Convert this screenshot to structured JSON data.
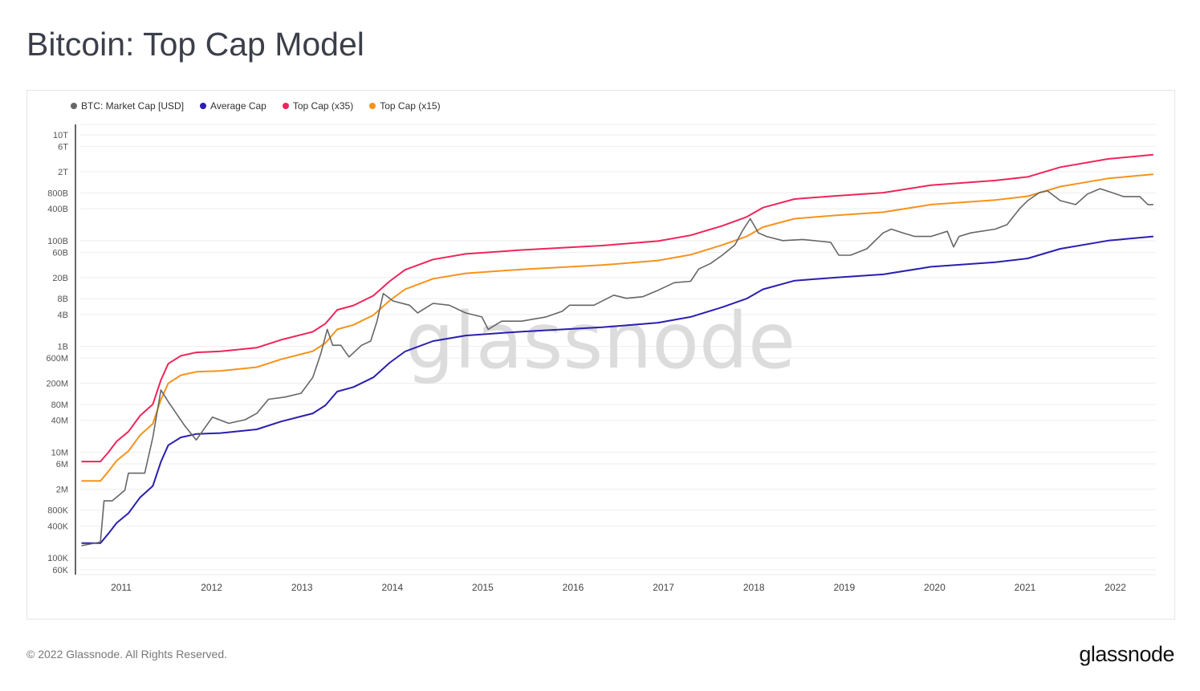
{
  "title": "Bitcoin: Top Cap Model",
  "footer": {
    "copyright": "© 2022 Glassnode. All Rights Reserved.",
    "logo": "glassnode"
  },
  "watermark": "glassnode",
  "chart_data": {
    "type": "line",
    "title": "Bitcoin: Top Cap Model",
    "yscale": "log",
    "ylim": [
      60000,
      10000000000000
    ],
    "xlim": [
      2010.55,
      2022.45
    ],
    "legend_position": "top-left",
    "grid": true,
    "y_ticks": [
      {
        "label": "10T",
        "value": 10000000000000.0
      },
      {
        "label": "6T",
        "value": 6000000000000.0
      },
      {
        "label": "2T",
        "value": 2000000000000.0
      },
      {
        "label": "800B",
        "value": 800000000000.0
      },
      {
        "label": "400B",
        "value": 400000000000.0
      },
      {
        "label": "100B",
        "value": 100000000000.0
      },
      {
        "label": "60B",
        "value": 60000000000.0
      },
      {
        "label": "20B",
        "value": 20000000000.0
      },
      {
        "label": "8B",
        "value": 8000000000.0
      },
      {
        "label": "4B",
        "value": 4000000000.0
      },
      {
        "label": "1B",
        "value": 1000000000.0
      },
      {
        "label": "600M",
        "value": 600000000.0
      },
      {
        "label": "200M",
        "value": 200000000.0
      },
      {
        "label": "80M",
        "value": 80000000.0
      },
      {
        "label": "40M",
        "value": 40000000.0
      },
      {
        "label": "10M",
        "value": 10000000.0
      },
      {
        "label": "6M",
        "value": 6000000.0
      },
      {
        "label": "2M",
        "value": 2000000.0
      },
      {
        "label": "800K",
        "value": 800000.0
      },
      {
        "label": "400K",
        "value": 400000.0
      },
      {
        "label": "100K",
        "value": 100000.0
      },
      {
        "label": "60K",
        "value": 60000.0
      }
    ],
    "x_ticks": [
      {
        "label": "2011",
        "value": 2011
      },
      {
        "label": "2012",
        "value": 2012
      },
      {
        "label": "2013",
        "value": 2013
      },
      {
        "label": "2014",
        "value": 2014
      },
      {
        "label": "2015",
        "value": 2015
      },
      {
        "label": "2016",
        "value": 2016
      },
      {
        "label": "2017",
        "value": 2017
      },
      {
        "label": "2018",
        "value": 2018
      },
      {
        "label": "2019",
        "value": 2019
      },
      {
        "label": "2020",
        "value": 2020
      },
      {
        "label": "2021",
        "value": 2021
      },
      {
        "label": "2022",
        "value": 2022
      }
    ],
    "series": [
      {
        "name": "BTC: Market Cap [USD]",
        "color": "#666666",
        "x": [
          2010.56,
          2010.77,
          2010.81,
          2010.9,
          2011.04,
          2011.08,
          2011.26,
          2011.35,
          2011.44,
          2011.52,
          2011.7,
          2011.83,
          2012.01,
          2012.19,
          2012.37,
          2012.5,
          2012.63,
          2012.81,
          2012.99,
          2013.12,
          2013.21,
          2013.28,
          2013.34,
          2013.43,
          2013.52,
          2013.66,
          2013.76,
          2013.83,
          2013.9,
          2014.01,
          2014.19,
          2014.28,
          2014.45,
          2014.63,
          2014.81,
          2014.99,
          2015.06,
          2015.21,
          2015.43,
          2015.7,
          2015.88,
          2015.96,
          2016.23,
          2016.45,
          2016.59,
          2016.77,
          2016.94,
          2017.12,
          2017.3,
          2017.39,
          2017.52,
          2017.65,
          2017.79,
          2017.87,
          2017.96,
          2018.05,
          2018.14,
          2018.32,
          2018.54,
          2018.85,
          2018.94,
          2019.07,
          2019.25,
          2019.43,
          2019.52,
          2019.65,
          2019.78,
          2019.96,
          2020.14,
          2020.21,
          2020.27,
          2020.4,
          2020.67,
          2020.8,
          2020.94,
          2021.03,
          2021.16,
          2021.25,
          2021.39,
          2021.56,
          2021.69,
          2021.83,
          2021.96,
          2022.09,
          2022.27,
          2022.36,
          2022.42
        ],
        "values": [
          170000.0,
          200000.0,
          1200000.0,
          1200000.0,
          1900000.0,
          4000000.0,
          4000000.0,
          19000000.0,
          150000000.0,
          90000000.0,
          32000000.0,
          17000000.0,
          46000000.0,
          35000000.0,
          41000000.0,
          54000000.0,
          100000000.0,
          110000000.0,
          130000000.0,
          260000000.0,
          740000000.0,
          2100000000.0,
          1050000000.0,
          1050000000.0,
          630000000.0,
          1050000000.0,
          1260000000.0,
          3000000000.0,
          10000000000.0,
          7200000000.0,
          6000000000.0,
          4300000000.0,
          6500000000.0,
          6000000000.0,
          4300000000.0,
          3600000000.0,
          2100000000.0,
          3000000000.0,
          3000000000.0,
          3600000000.0,
          4600000000.0,
          6000000000.0,
          6000000000.0,
          9300000000.0,
          8100000000.0,
          8700000000.0,
          11500000000.0,
          16000000000.0,
          17000000000.0,
          29000000000.0,
          37000000000.0,
          53000000000.0,
          83000000000.0,
          150000000000.0,
          260000000000.0,
          140000000000.0,
          120000000000.0,
          100000000000.0,
          105000000000.0,
          93000000000.0,
          53000000000.0,
          53000000000.0,
          70000000000.0,
          140000000000.0,
          165000000000.0,
          140000000000.0,
          120000000000.0,
          120000000000.0,
          150000000000.0,
          76000000000.0,
          120000000000.0,
          140000000000.0,
          165000000000.0,
          200000000000.0,
          400000000000.0,
          570000000000.0,
          810000000000.0,
          870000000000.0,
          570000000000.0,
          480000000000.0,
          760000000000.0,
          960000000000.0,
          810000000000.0,
          680000000000.0,
          680000000000.0,
          480000000000.0,
          480000000000.0
        ]
      },
      {
        "name": "Average Cap",
        "color": "#2a1fb0",
        "x": [
          2010.56,
          2010.77,
          2010.86,
          2010.95,
          2011.08,
          2011.21,
          2011.35,
          2011.44,
          2011.52,
          2011.66,
          2011.83,
          2012.1,
          2012.5,
          2012.77,
          2013.12,
          2013.26,
          2013.39,
          2013.57,
          2013.79,
          2013.97,
          2014.14,
          2014.45,
          2014.81,
          2015.43,
          2016.32,
          2016.94,
          2017.3,
          2017.65,
          2017.92,
          2018.1,
          2018.45,
          2018.9,
          2019.43,
          2019.96,
          2020.67,
          2021.03,
          2021.39,
          2021.92,
          2022.42
        ],
        "values": [
          190000.0,
          190000.0,
          290000.0,
          460000.0,
          700000.0,
          1400000.0,
          2300000.0,
          6600000.0,
          13500000.0,
          19000000.0,
          22000000.0,
          23000000.0,
          27000000.0,
          38000000.0,
          54000000.0,
          77000000.0,
          140000000.0,
          170000000.0,
          260000000.0,
          490000000.0,
          800000000.0,
          1260000000.0,
          1600000000.0,
          1900000000.0,
          2300000000.0,
          2800000000.0,
          3600000000.0,
          5500000000.0,
          8000000000.0,
          12000000000.0,
          17500000000.0,
          20000000000.0,
          23000000000.0,
          32000000000.0,
          39000000000.0,
          46000000000.0,
          70000000000.0,
          100000000000.0,
          120000000000.0
        ]
      },
      {
        "name": "Top Cap (x35)",
        "color": "#f0245a",
        "x": [
          2010.56,
          2010.77,
          2010.86,
          2010.95,
          2011.08,
          2011.21,
          2011.35,
          2011.44,
          2011.52,
          2011.66,
          2011.83,
          2012.1,
          2012.5,
          2012.77,
          2013.12,
          2013.26,
          2013.39,
          2013.57,
          2013.79,
          2013.97,
          2014.14,
          2014.45,
          2014.81,
          2015.43,
          2016.32,
          2016.94,
          2017.3,
          2017.65,
          2017.92,
          2018.1,
          2018.45,
          2018.9,
          2019.43,
          2019.96,
          2020.67,
          2021.03,
          2021.39,
          2021.92,
          2022.42
        ],
        "values": [
          6650000.0,
          6650000.0,
          10000000.0,
          16000000.0,
          24500000.0,
          49000000.0,
          80500000.0,
          231000000.0,
          470000000.0,
          665000000.0,
          770000000.0,
          805000000.0,
          945000000.0,
          1330000000.0,
          1890000000.0,
          2700000000.0,
          4900000000.0,
          5950000000.0,
          9100000000.0,
          17000000000.0,
          28000000000.0,
          44000000000.0,
          56000000000.0,
          66500000000.0,
          80500000000.0,
          98000000000.0,
          126000000000.0,
          190000000000.0,
          280000000000.0,
          420000000000.0,
          610000000000.0,
          700000000000.0,
          805000000000.0,
          1120000000000.0,
          1370000000000.0,
          1600000000000.0,
          2450000000000.0,
          3500000000000.0,
          4200000000000.0
        ]
      },
      {
        "name": "Top Cap (x15)",
        "color": "#f7931a",
        "x": [
          2010.56,
          2010.77,
          2010.86,
          2010.95,
          2011.08,
          2011.21,
          2011.35,
          2011.44,
          2011.52,
          2011.66,
          2011.83,
          2012.1,
          2012.5,
          2012.77,
          2013.12,
          2013.26,
          2013.39,
          2013.57,
          2013.79,
          2013.97,
          2014.14,
          2014.45,
          2014.81,
          2015.43,
          2016.32,
          2016.94,
          2017.3,
          2017.65,
          2017.92,
          2018.1,
          2018.45,
          2018.9,
          2019.43,
          2019.96,
          2020.67,
          2021.03,
          2021.39,
          2021.92,
          2022.42
        ],
        "values": [
          2850000.0,
          2850000.0,
          4350000.0,
          6900000.0,
          10500000.0,
          21000000.0,
          34500000.0,
          99000000.0,
          200000000.0,
          285000000.0,
          330000000.0,
          345000000.0,
          405000000.0,
          570000000.0,
          810000000.0,
          1160000000.0,
          2100000000.0,
          2550000000.0,
          3900000000.0,
          7350000000.0,
          12000000000.0,
          19000000000.0,
          24000000000.0,
          28500000000.0,
          34500000000.0,
          42000000000.0,
          54000000000.0,
          82500000000.0,
          120000000000.0,
          180000000000.0,
          260000000000.0,
          300000000000.0,
          345000000000.0,
          480000000000.0,
          585000000000.0,
          690000000000.0,
          1050000000000.0,
          1500000000000.0,
          1800000000000.0
        ]
      }
    ]
  }
}
